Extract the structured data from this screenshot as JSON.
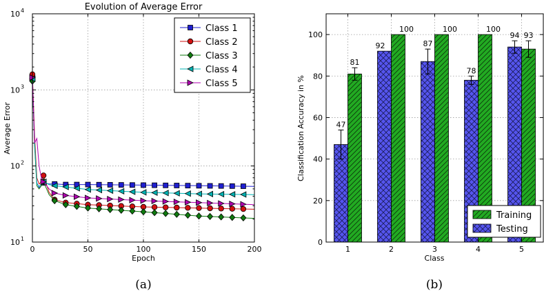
{
  "captions": {
    "a": "(a)",
    "b": "(b)"
  },
  "chart_data": [
    {
      "type": "line",
      "title": "Evolution of Average Error",
      "xlabel": "Epoch",
      "ylabel": "Average Error",
      "xlim": [
        0,
        200
      ],
      "ylim": [
        10,
        10000
      ],
      "yscale": "log",
      "xticks": [
        "0",
        "50",
        "100",
        "150",
        "200"
      ],
      "yticks": [
        {
          "value": 10,
          "mantissa": "10",
          "exp": "1"
        },
        {
          "value": 100,
          "mantissa": "10",
          "exp": "2"
        },
        {
          "value": 1000,
          "mantissa": "10",
          "exp": "3"
        },
        {
          "value": 10000,
          "mantissa": "10",
          "exp": "4"
        }
      ],
      "grid": true,
      "legend_position": "top-right",
      "markers_x": [
        0,
        10,
        20,
        30,
        40,
        50,
        60,
        70,
        80,
        90,
        100,
        110,
        120,
        130,
        140,
        150,
        160,
        170,
        180,
        190
      ],
      "series": [
        {
          "name": "Class 1",
          "color": "#1f1fd0",
          "marker": "square",
          "x": [
            0,
            2,
            4,
            6,
            8,
            10,
            15,
            20,
            30,
            50,
            100,
            150,
            200
          ],
          "y": [
            1500,
            200,
            60,
            52,
            55,
            60,
            58,
            58,
            57,
            57,
            56,
            55,
            54
          ]
        },
        {
          "name": "Class 2",
          "color": "#d01010",
          "marker": "circle",
          "x": [
            0,
            2,
            4,
            6,
            8,
            10,
            15,
            20,
            30,
            50,
            100,
            150,
            200
          ],
          "y": [
            1600,
            250,
            70,
            58,
            62,
            75,
            45,
            36,
            33,
            31,
            29,
            28,
            27
          ]
        },
        {
          "name": "Class 3",
          "color": "#0f7a0f",
          "marker": "diamond",
          "x": [
            0,
            2,
            4,
            6,
            8,
            10,
            15,
            20,
            30,
            50,
            100,
            150,
            200
          ],
          "y": [
            1300,
            180,
            55,
            50,
            55,
            62,
            42,
            35,
            31,
            28,
            25,
            22,
            20.5
          ]
        },
        {
          "name": "Class 4",
          "color": "#00b3b3",
          "marker": "triangle-left",
          "x": [
            0,
            2,
            4,
            6,
            8,
            10,
            15,
            20,
            30,
            50,
            100,
            150,
            200
          ],
          "y": [
            1400,
            200,
            58,
            54,
            58,
            62,
            57,
            55,
            53,
            49,
            45,
            43,
            42
          ]
        },
        {
          "name": "Class 5",
          "color": "#b000b0",
          "marker": "triangle-right",
          "x": [
            0,
            2,
            4,
            6,
            8,
            10,
            15,
            20,
            30,
            50,
            100,
            150,
            200
          ],
          "y": [
            1450,
            200,
            230,
            100,
            70,
            62,
            50,
            44,
            41,
            38,
            35,
            33,
            31
          ]
        }
      ]
    },
    {
      "type": "bar",
      "xlabel": "Class",
      "ylabel": "Classification Accuracy in %",
      "ylim": [
        0,
        110
      ],
      "yticks": [
        0,
        20,
        40,
        60,
        80,
        100
      ],
      "categories": [
        "1",
        "2",
        "3",
        "4",
        "5"
      ],
      "grid": true,
      "legend_position": "bottom-right",
      "series": [
        {
          "name": "Testing",
          "color": "#5555ee",
          "hatch": "crosshatch",
          "values": [
            47,
            92,
            87,
            78,
            94
          ],
          "errors": [
            7,
            0,
            6,
            2,
            3
          ],
          "labels": [
            "47",
            "92",
            "87",
            "78",
            "94"
          ]
        },
        {
          "name": "Training",
          "color": "#22aa22",
          "hatch": "diagonal",
          "values": [
            81,
            100,
            100,
            100,
            93
          ],
          "errors": [
            3,
            0,
            0,
            0,
            4
          ],
          "labels": [
            "81",
            "100",
            "100",
            "100",
            "93"
          ]
        }
      ],
      "legend_order": [
        "Training",
        "Testing"
      ]
    }
  ]
}
